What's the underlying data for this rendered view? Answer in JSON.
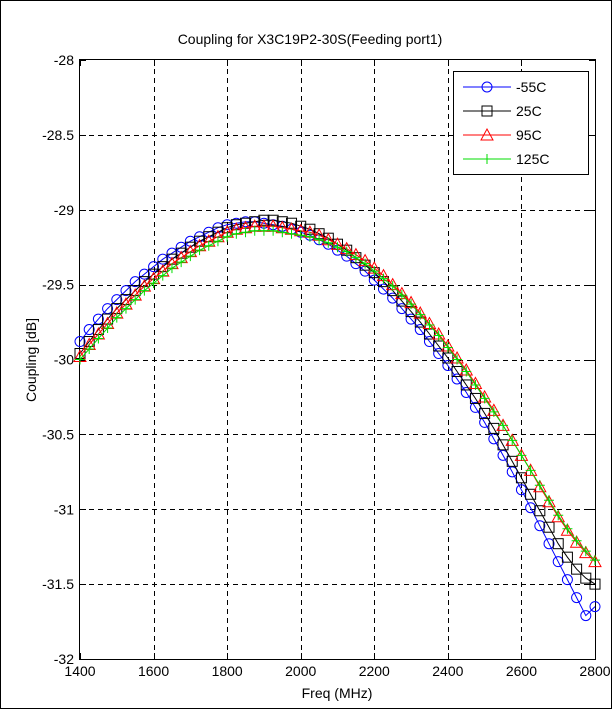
{
  "chart_data": {
    "type": "line",
    "title": "Coupling for X3C19P2-30S(Feeding port1)",
    "xlabel": "Freq (MHz)",
    "ylabel": "Coupling [dB]",
    "xlim": [
      1400,
      2800
    ],
    "ylim": [
      -32,
      -28
    ],
    "xticks": [
      "1400",
      "1600",
      "1800",
      "2000",
      "2200",
      "2400",
      "2600",
      "2800"
    ],
    "yticks": [
      "-28",
      "-28.5",
      "-29",
      "-29.5",
      "-30",
      "-30.5",
      "-31",
      "-31.5",
      "-32"
    ],
    "grid": true,
    "legend_position": "top-right",
    "x": [
      1400,
      1425,
      1450,
      1475,
      1500,
      1525,
      1550,
      1575,
      1600,
      1625,
      1650,
      1675,
      1700,
      1725,
      1750,
      1775,
      1800,
      1825,
      1850,
      1875,
      1900,
      1925,
      1950,
      1975,
      2000,
      2025,
      2050,
      2075,
      2100,
      2125,
      2150,
      2175,
      2200,
      2225,
      2250,
      2275,
      2300,
      2325,
      2350,
      2375,
      2400,
      2425,
      2450,
      2475,
      2500,
      2525,
      2550,
      2575,
      2600,
      2625,
      2650,
      2675,
      2700,
      2725,
      2750,
      2775,
      2800
    ],
    "series": [
      {
        "name": "-55C",
        "color": "#0000ff",
        "marker": "circle",
        "values": [
          -29.88,
          -29.8,
          -29.73,
          -29.66,
          -29.6,
          -29.54,
          -29.48,
          -29.43,
          -29.38,
          -29.33,
          -29.29,
          -29.25,
          -29.21,
          -29.18,
          -29.15,
          -29.12,
          -29.1,
          -29.09,
          -29.08,
          -29.08,
          -29.09,
          -29.1,
          -29.11,
          -29.13,
          -29.15,
          -29.17,
          -29.2,
          -29.23,
          -29.27,
          -29.31,
          -29.36,
          -29.41,
          -29.47,
          -29.53,
          -29.59,
          -29.66,
          -29.73,
          -29.8,
          -29.88,
          -29.96,
          -30.04,
          -30.13,
          -30.22,
          -30.32,
          -30.42,
          -30.53,
          -30.64,
          -30.75,
          -30.87,
          -30.99,
          -31.11,
          -31.23,
          -31.35,
          -31.47,
          -31.59,
          -31.71,
          -31.65
        ]
      },
      {
        "name": "25C",
        "color": "#000000",
        "marker": "square",
        "values": [
          -29.96,
          -29.88,
          -29.8,
          -29.73,
          -29.66,
          -29.6,
          -29.54,
          -29.48,
          -29.43,
          -29.38,
          -29.33,
          -29.29,
          -29.25,
          -29.21,
          -29.18,
          -29.15,
          -29.12,
          -29.1,
          -29.09,
          -29.08,
          -29.07,
          -29.07,
          -29.08,
          -29.09,
          -29.11,
          -29.13,
          -29.16,
          -29.19,
          -29.23,
          -29.27,
          -29.32,
          -29.37,
          -29.42,
          -29.48,
          -29.54,
          -29.61,
          -29.68,
          -29.75,
          -29.83,
          -29.91,
          -29.99,
          -30.08,
          -30.17,
          -30.26,
          -30.36,
          -30.46,
          -30.57,
          -30.68,
          -30.79,
          -30.9,
          -31.01,
          -31.12,
          -31.23,
          -31.32,
          -31.4,
          -31.46,
          -31.5
        ]
      },
      {
        "name": "95C",
        "color": "#ff0000",
        "marker": "triangle",
        "values": [
          -29.98,
          -29.9,
          -29.83,
          -29.76,
          -29.69,
          -29.63,
          -29.57,
          -29.51,
          -29.46,
          -29.41,
          -29.36,
          -29.32,
          -29.28,
          -29.24,
          -29.21,
          -29.18,
          -29.15,
          -29.13,
          -29.12,
          -29.11,
          -29.11,
          -29.11,
          -29.12,
          -29.13,
          -29.14,
          -29.15,
          -29.17,
          -29.2,
          -29.23,
          -29.26,
          -29.3,
          -29.34,
          -29.39,
          -29.44,
          -29.5,
          -29.56,
          -29.62,
          -29.69,
          -29.76,
          -29.83,
          -29.91,
          -29.99,
          -30.07,
          -30.16,
          -30.25,
          -30.34,
          -30.44,
          -30.54,
          -30.64,
          -30.74,
          -30.85,
          -30.95,
          -31.05,
          -31.14,
          -31.22,
          -31.29,
          -31.35
        ]
      },
      {
        "name": "125C",
        "color": "#00dd00",
        "marker": "plus",
        "values": [
          -30.0,
          -29.93,
          -29.86,
          -29.79,
          -29.72,
          -29.66,
          -29.6,
          -29.54,
          -29.49,
          -29.44,
          -29.39,
          -29.35,
          -29.31,
          -29.27,
          -29.24,
          -29.21,
          -29.18,
          -29.16,
          -29.15,
          -29.14,
          -29.14,
          -29.14,
          -29.15,
          -29.16,
          -29.17,
          -29.18,
          -29.2,
          -29.22,
          -29.25,
          -29.28,
          -29.32,
          -29.36,
          -29.41,
          -29.46,
          -29.51,
          -29.57,
          -29.63,
          -29.7,
          -29.77,
          -29.84,
          -29.92,
          -30.0,
          -30.08,
          -30.17,
          -30.26,
          -30.35,
          -30.44,
          -30.54,
          -30.64,
          -30.74,
          -30.84,
          -30.94,
          -31.04,
          -31.13,
          -31.21,
          -31.28,
          -31.34
        ]
      }
    ]
  }
}
